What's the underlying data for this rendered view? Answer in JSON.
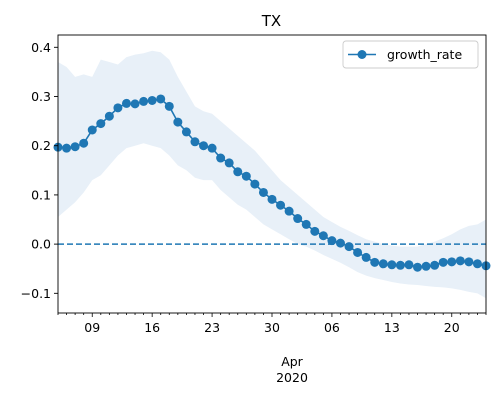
{
  "chart_data": {
    "type": "line",
    "title": "TX",
    "xlabel": "",
    "ylabel": "",
    "x_axis": {
      "major_ticks": [
        "09",
        "16",
        "23",
        "30",
        "06",
        "13",
        "20"
      ],
      "month_label": "Apr",
      "year_label": "2020",
      "first_date": "2020-03-05",
      "last_date": "2020-04-24"
    },
    "ylim": [
      -0.14,
      0.425
    ],
    "yticks": [
      "0.4",
      "0.3",
      "0.2",
      "0.1",
      "0.0",
      "−0.1"
    ],
    "reference_line": {
      "y": 0.0,
      "style": "dashed",
      "color": "#1f77b4"
    },
    "legend": {
      "placement": "top-right",
      "entries": [
        "growth_rate"
      ]
    },
    "series": [
      {
        "name": "growth_rate",
        "color": "#1f77b4",
        "marker": "circle",
        "band_color": "#e8f0f8",
        "x": [
          "2020-03-05",
          "2020-03-06",
          "2020-03-07",
          "2020-03-08",
          "2020-03-09",
          "2020-03-10",
          "2020-03-11",
          "2020-03-12",
          "2020-03-13",
          "2020-03-14",
          "2020-03-15",
          "2020-03-16",
          "2020-03-17",
          "2020-03-18",
          "2020-03-19",
          "2020-03-20",
          "2020-03-21",
          "2020-03-22",
          "2020-03-23",
          "2020-03-24",
          "2020-03-25",
          "2020-03-26",
          "2020-03-27",
          "2020-03-28",
          "2020-03-29",
          "2020-03-30",
          "2020-03-31",
          "2020-04-01",
          "2020-04-02",
          "2020-04-03",
          "2020-04-04",
          "2020-04-05",
          "2020-04-06",
          "2020-04-07",
          "2020-04-08",
          "2020-04-09",
          "2020-04-10",
          "2020-04-11",
          "2020-04-12",
          "2020-04-13",
          "2020-04-14",
          "2020-04-15",
          "2020-04-16",
          "2020-04-17",
          "2020-04-18",
          "2020-04-19",
          "2020-04-20",
          "2020-04-21",
          "2020-04-22",
          "2020-04-23",
          "2020-04-24"
        ],
        "values": [
          0.197,
          0.195,
          0.198,
          0.205,
          0.232,
          0.245,
          0.26,
          0.277,
          0.286,
          0.285,
          0.29,
          0.292,
          0.295,
          0.28,
          0.248,
          0.228,
          0.208,
          0.2,
          0.195,
          0.175,
          0.165,
          0.147,
          0.138,
          0.122,
          0.105,
          0.091,
          0.079,
          0.067,
          0.052,
          0.04,
          0.026,
          0.017,
          0.007,
          0.002,
          -0.005,
          -0.017,
          -0.027,
          -0.037,
          -0.04,
          -0.042,
          -0.043,
          -0.042,
          -0.047,
          -0.045,
          -0.043,
          -0.037,
          -0.036,
          -0.034,
          -0.036,
          -0.04,
          -0.044
        ],
        "upper": [
          0.37,
          0.36,
          0.34,
          0.345,
          0.34,
          0.375,
          0.37,
          0.365,
          0.38,
          0.385,
          0.388,
          0.393,
          0.39,
          0.375,
          0.34,
          0.31,
          0.28,
          0.27,
          0.265,
          0.25,
          0.235,
          0.22,
          0.205,
          0.19,
          0.17,
          0.15,
          0.13,
          0.115,
          0.1,
          0.085,
          0.07,
          0.055,
          0.045,
          0.035,
          0.027,
          0.018,
          0.01,
          0.005,
          0.0,
          -0.003,
          -0.005,
          -0.005,
          -0.005,
          0.0,
          0.005,
          0.012,
          0.02,
          0.03,
          0.037,
          0.04,
          0.05
        ],
        "lower": [
          0.055,
          0.07,
          0.085,
          0.105,
          0.13,
          0.14,
          0.16,
          0.18,
          0.195,
          0.2,
          0.205,
          0.2,
          0.195,
          0.18,
          0.16,
          0.15,
          0.135,
          0.13,
          0.13,
          0.11,
          0.095,
          0.08,
          0.07,
          0.055,
          0.04,
          0.03,
          0.02,
          0.01,
          0.0,
          -0.005,
          -0.013,
          -0.022,
          -0.03,
          -0.038,
          -0.047,
          -0.057,
          -0.064,
          -0.069,
          -0.073,
          -0.077,
          -0.08,
          -0.082,
          -0.083,
          -0.085,
          -0.087,
          -0.088,
          -0.09,
          -0.093,
          -0.097,
          -0.1,
          -0.11
        ]
      }
    ]
  }
}
